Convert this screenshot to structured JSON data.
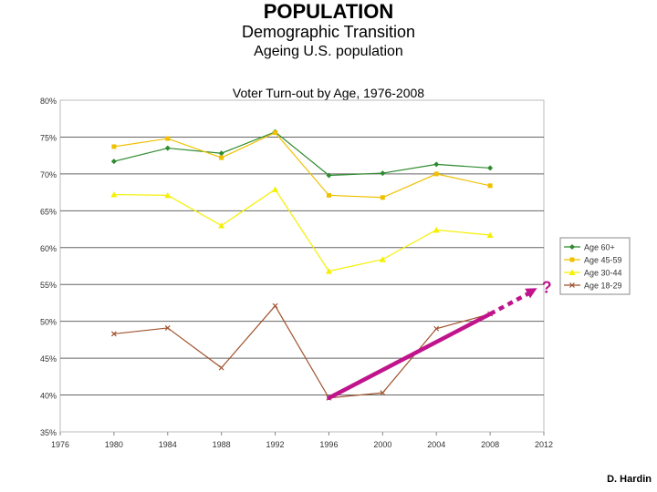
{
  "slide": {
    "heading": "POPULATION",
    "subheading": "Demographic Transition",
    "subtitle": "Ageing U.S. population",
    "credit": "D. Hardin"
  },
  "chart_data": {
    "type": "line",
    "title": "Voter Turn-out by Age, 1976-2008",
    "xlabel": "",
    "ylabel": "",
    "x_ticks": [
      "1976",
      "1980",
      "1984",
      "1988",
      "1992",
      "1996",
      "2000",
      "2004",
      "2008",
      "2012"
    ],
    "y_ticks": [
      "35%",
      "40%",
      "45%",
      "50%",
      "55%",
      "60%",
      "65%",
      "70%",
      "75%",
      "80%"
    ],
    "xlim": [
      1976,
      2012
    ],
    "ylim": [
      35,
      80
    ],
    "grid": "horizontal",
    "legend_position": "right",
    "x": [
      1980,
      1984,
      1988,
      1992,
      1996,
      2000,
      2004,
      2008
    ],
    "series": [
      {
        "name": "Age 60+",
        "color": "#2e8b2e",
        "marker": "diamond",
        "values": [
          71.7,
          73.5,
          72.8,
          75.7,
          69.8,
          70.1,
          71.3,
          70.8
        ]
      },
      {
        "name": "Age 45-59",
        "color": "#f0c000",
        "marker": "square",
        "values": [
          73.7,
          74.8,
          72.2,
          75.6,
          67.1,
          66.8,
          70.0,
          68.4
        ]
      },
      {
        "name": "Age 30-44",
        "color": "#f5f000",
        "marker": "triangle",
        "values": [
          67.2,
          67.1,
          63.0,
          67.9,
          56.8,
          58.4,
          62.4,
          61.7
        ]
      },
      {
        "name": "Age 18-29",
        "color": "#a0522d",
        "marker": "x",
        "values": [
          48.3,
          49.1,
          43.7,
          52.1,
          39.6,
          40.3,
          49.0,
          51.0
        ]
      }
    ],
    "annotation": {
      "label": "?",
      "color": "#c0148c",
      "trend_start": [
        1996,
        39.6
      ],
      "trend_end": [
        2008,
        51.0
      ],
      "projection_end": [
        2011.5,
        54.5
      ]
    }
  }
}
